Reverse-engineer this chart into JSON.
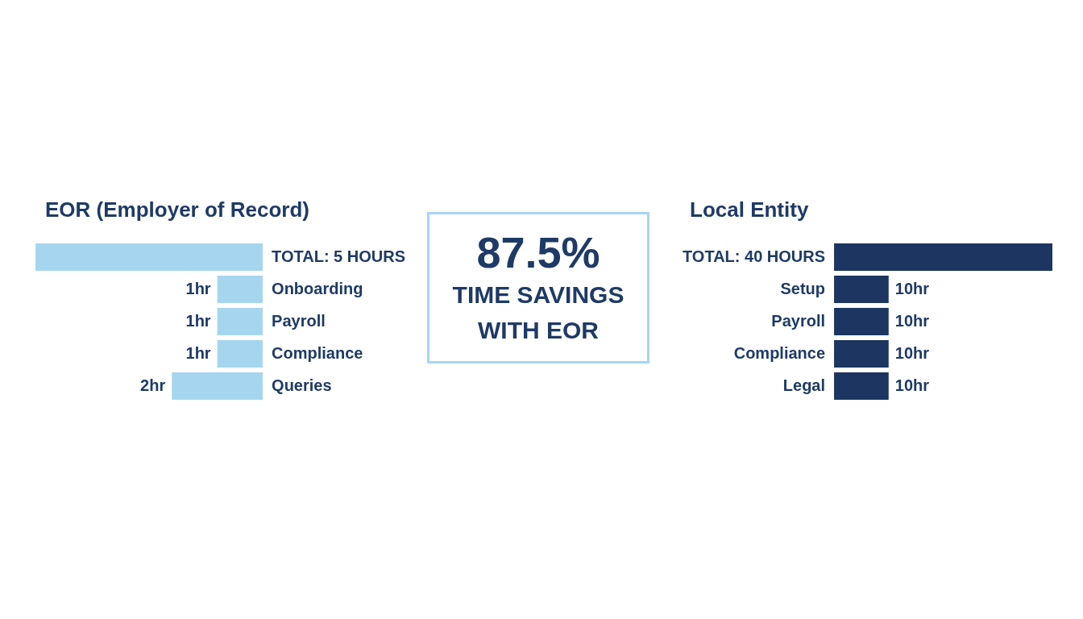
{
  "chart_data": [
    {
      "type": "bar",
      "title": "EOR (Employer of Record)",
      "orientation": "horizontal",
      "categories": [
        "TOTAL: 5 HOURS",
        "Onboarding",
        "Payroll",
        "Compliance",
        "Queries"
      ],
      "values": [
        5,
        1,
        1,
        1,
        2
      ],
      "value_labels": [
        null,
        "1hr",
        "1hr",
        "1hr",
        "2hr"
      ],
      "color": "#a6d6ef",
      "xlim": [
        5,
        0
      ],
      "tick_labels": "y"
    },
    {
      "type": "other",
      "title": "87.5%",
      "subtitle": "TIME SAVINGS WITH EOR"
    },
    {
      "type": "bar",
      "title": "Local Entity",
      "orientation": "horizontal",
      "categories": [
        "TOTAL: 40 HOURS",
        "Setup",
        "Payroll",
        "Compliance",
        "Legal"
      ],
      "values": [
        40,
        10,
        10,
        10,
        10
      ],
      "value_labels": [
        null,
        "10hr",
        "10hr",
        "10hr",
        "10hr"
      ],
      "color": "#1c3561",
      "xlim": [
        0,
        40
      ],
      "tick_labels": "y"
    }
  ]
}
